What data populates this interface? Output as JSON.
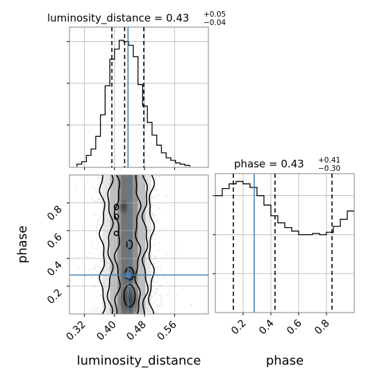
{
  "chart_data": [
    {
      "panel": "luminosity_distance-marginal",
      "type": "histogram",
      "parameter": "luminosity_distance",
      "title": {
        "prefix": "luminosity_distance = ",
        "value": "0.43",
        "upper": "+0.05",
        "lower": "−0.04"
      },
      "xlim": [
        0.28,
        0.65
      ],
      "bin_edges": [
        0.3,
        0.3125,
        0.325,
        0.3375,
        0.35,
        0.3625,
        0.375,
        0.3875,
        0.4,
        0.4125,
        0.425,
        0.4375,
        0.45,
        0.4625,
        0.475,
        0.4875,
        0.5,
        0.5125,
        0.525,
        0.5375,
        0.55,
        0.5625,
        0.575,
        0.5875,
        0.6
      ],
      "counts": [
        0.02,
        0.04,
        0.09,
        0.14,
        0.24,
        0.41,
        0.64,
        0.85,
        0.93,
        1.0,
        0.99,
        0.96,
        0.87,
        0.65,
        0.48,
        0.35,
        0.25,
        0.17,
        0.11,
        0.07,
        0.05,
        0.03,
        0.02,
        0.01
      ],
      "quantiles": [
        0.393,
        0.427,
        0.478
      ],
      "truth": 0.436,
      "grid": true
    },
    {
      "panel": "phase-marginal",
      "type": "histogram",
      "parameter": "phase",
      "title": {
        "prefix": "phase = ",
        "value": "0.43",
        "upper": "+0.41",
        "lower": "−0.30"
      },
      "xlim": [
        0.0,
        1.0
      ],
      "xticks": [
        "0.2",
        "0.4",
        "0.6",
        "0.8"
      ],
      "xlabel": "phase",
      "bin_edges": [
        0.0,
        0.05,
        0.1,
        0.15,
        0.2,
        0.25,
        0.3,
        0.35,
        0.4,
        0.45,
        0.5,
        0.55,
        0.6,
        0.65,
        0.7,
        0.75,
        0.8,
        0.85,
        0.9,
        0.95,
        1.0
      ],
      "counts": [
        0.99,
        1.05,
        1.09,
        1.11,
        1.09,
        1.06,
        0.99,
        0.91,
        0.82,
        0.76,
        0.72,
        0.69,
        0.66,
        0.66,
        0.67,
        0.66,
        0.68,
        0.73,
        0.79,
        0.86
      ],
      "quantiles": [
        0.13,
        0.43,
        0.84
      ],
      "truth": 0.28,
      "grid": true
    },
    {
      "panel": "joint",
      "type": "contour",
      "xlim": [
        0.28,
        0.65
      ],
      "ylim": [
        0.0,
        1.0
      ],
      "xticks": [
        "0.32",
        "0.40",
        "0.48",
        "0.56"
      ],
      "yticks": [
        "0.2",
        "0.4",
        "0.6",
        "0.8"
      ],
      "xlabel": "luminosity_distance",
      "ylabel": "phase",
      "truth": {
        "x": 0.436,
        "y": 0.28
      },
      "contour_x_extents": [
        {
          "level": "outer",
          "x": [
            0.368,
            0.498
          ]
        },
        {
          "level": "middle",
          "x": [
            0.388,
            0.482
          ]
        },
        {
          "level": "inner",
          "x": [
            0.408,
            0.462
          ]
        }
      ],
      "grid": true
    }
  ],
  "colors": {
    "truth": "#4682b4",
    "line": "#000000",
    "grid": "#b0b0b0",
    "scatter": "#bdbdbd"
  }
}
